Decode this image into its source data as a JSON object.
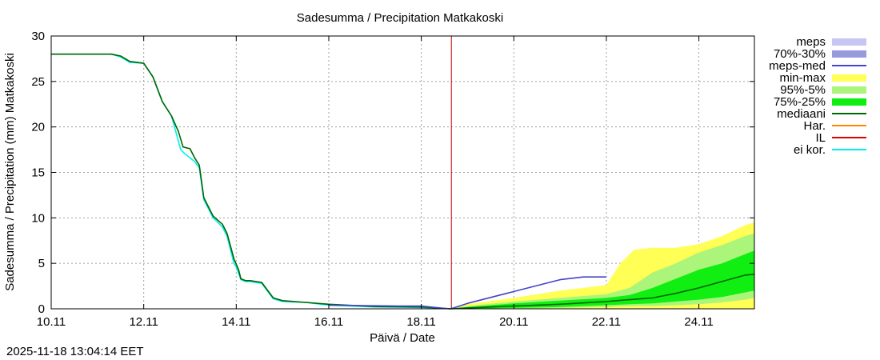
{
  "chart_data": {
    "type": "line",
    "title": "Sadesumma / Precipitation  Matkakoski",
    "xlabel": "Päivä / Date",
    "ylabel": "Sadesumma / Precipitation (mm)  Matkakoski",
    "ylim": [
      0,
      30
    ],
    "xlim_days": [
      0,
      15.2
    ],
    "y_ticks": [
      0,
      5,
      10,
      15,
      20,
      25,
      30
    ],
    "x_ticks": [
      {
        "day": 0,
        "label": "10.11"
      },
      {
        "day": 2,
        "label": "12.11"
      },
      {
        "day": 4,
        "label": "14.11"
      },
      {
        "day": 6,
        "label": "16.11"
      },
      {
        "day": 8,
        "label": "18.11"
      },
      {
        "day": 10,
        "label": "20.11"
      },
      {
        "day": 12,
        "label": "22.11"
      },
      {
        "day": 14,
        "label": "24.11"
      }
    ],
    "grid": true,
    "now_marker_day": 8.65,
    "legend": [
      {
        "label": "meps",
        "color": "#c6c6f5",
        "kind": "box"
      },
      {
        "label": "70%-30%",
        "color": "#9999dd",
        "kind": "box"
      },
      {
        "label": "meps-med",
        "color": "#4444cc",
        "kind": "line"
      },
      {
        "label": "min-max",
        "color": "#ffff55",
        "kind": "box"
      },
      {
        "label": "95%-5%",
        "color": "#aaf57a",
        "kind": "box"
      },
      {
        "label": "75%-25%",
        "color": "#11ee11",
        "kind": "box"
      },
      {
        "label": "mediaani",
        "color": "#006600",
        "kind": "line"
      },
      {
        "label": "Har.",
        "color": "#ff8800",
        "kind": "line"
      },
      {
        "label": "IL",
        "color": "#dd0000",
        "kind": "line"
      },
      {
        "label": "ei kor.",
        "color": "#00eeee",
        "kind": "line"
      }
    ],
    "series": [
      {
        "name": "ei kor.",
        "color": "#00eeee",
        "x": [
          0,
          1,
          1.3,
          1.5,
          1.7,
          2.0,
          2.2,
          2.4,
          2.6,
          2.8,
          2.9,
          3.1,
          3.2,
          3.3,
          3.5,
          3.7,
          3.8,
          3.95,
          4.0,
          4.1,
          4.2,
          4.3,
          4.55,
          4.8,
          5.0,
          5.5,
          6.0,
          7.0,
          8.0,
          8.65
        ],
        "y": [
          28,
          28,
          28,
          27.7,
          27.1,
          27.0,
          25.5,
          22.8,
          21.2,
          17.5,
          17.0,
          16.2,
          15.5,
          12.0,
          10.0,
          9.0,
          8.0,
          5.0,
          4.6,
          3.2,
          3.0,
          3.0,
          2.8,
          1.1,
          0.8,
          0.7,
          0.4,
          0.2,
          0.15,
          0
        ]
      },
      {
        "name": "mediaani (observed)",
        "color": "#006600",
        "x": [
          0,
          1,
          1.3,
          1.5,
          1.7,
          2.0,
          2.2,
          2.4,
          2.6,
          2.75,
          2.85,
          3.0,
          3.1,
          3.2,
          3.3,
          3.5,
          3.7,
          3.8,
          3.95,
          4.05,
          4.1,
          4.2,
          4.3,
          4.55,
          4.8,
          5.0,
          5.5,
          6.0,
          7.0,
          8.0,
          8.65
        ],
        "y": [
          28,
          28,
          28,
          27.8,
          27.2,
          27.0,
          25.5,
          22.8,
          21.2,
          19.5,
          17.8,
          17.6,
          16.6,
          15.8,
          12.2,
          10.2,
          9.3,
          8.3,
          5.5,
          4.3,
          3.3,
          3.1,
          3.1,
          2.9,
          1.2,
          0.9,
          0.7,
          0.5,
          0.25,
          0.2,
          0
        ]
      },
      {
        "name": "meps-med",
        "color": "#4444cc",
        "x": [
          6.0,
          7.5,
          8.0,
          8.6,
          8.7,
          9.0,
          10.0,
          11.0,
          11.5,
          12.0
        ],
        "y": [
          0.4,
          0.3,
          0.3,
          0,
          0.1,
          0.6,
          1.9,
          3.2,
          3.5,
          3.5
        ]
      },
      {
        "name": "mediaani (forecast)",
        "color": "#006600",
        "x": [
          8.65,
          9.0,
          10.0,
          11.0,
          12.0,
          12.5,
          13.0,
          13.5,
          14.0,
          14.5,
          15.0,
          15.2
        ],
        "y": [
          0,
          0.1,
          0.3,
          0.5,
          0.8,
          1.0,
          1.2,
          1.7,
          2.3,
          3.0,
          3.7,
          3.8
        ]
      }
    ],
    "bands": [
      {
        "name": "min-max",
        "color": "#ffff55",
        "x": [
          8.65,
          9.0,
          10.0,
          11.0,
          11.5,
          12.0,
          12.3,
          12.6,
          13.0,
          13.5,
          14.0,
          14.5,
          15.0,
          15.2
        ],
        "low": [
          0,
          0,
          0,
          0,
          0,
          0,
          0,
          0,
          0,
          0,
          0,
          0,
          0,
          0
        ],
        "high": [
          0,
          0.5,
          1.2,
          2.0,
          2.3,
          2.6,
          5.0,
          6.5,
          6.7,
          6.7,
          7.1,
          8.0,
          9.2,
          9.5
        ]
      },
      {
        "name": "95%-5%",
        "color": "#aaf57a",
        "x": [
          8.65,
          9.0,
          10.0,
          11.0,
          12.0,
          12.5,
          13.0,
          13.5,
          14.0,
          14.5,
          15.0,
          15.2
        ],
        "low": [
          0,
          0,
          0,
          0.1,
          0.2,
          0.3,
          0.3,
          0.4,
          0.5,
          0.7,
          1.0,
          1.2
        ],
        "high": [
          0,
          0.3,
          0.8,
          1.2,
          1.6,
          2.3,
          4.0,
          5.0,
          6.2,
          7.0,
          8.0,
          8.3
        ]
      },
      {
        "name": "75%-25%",
        "color": "#11ee11",
        "x": [
          8.65,
          9.0,
          10.0,
          11.0,
          12.0,
          12.5,
          13.0,
          13.5,
          14.0,
          14.5,
          15.0,
          15.2
        ],
        "low": [
          0,
          0,
          0.1,
          0.2,
          0.4,
          0.5,
          0.6,
          0.8,
          1.0,
          1.3,
          1.8,
          2.0
        ],
        "high": [
          0,
          0.2,
          0.6,
          0.9,
          1.2,
          1.5,
          2.3,
          3.3,
          4.3,
          5.0,
          6.0,
          6.4
        ]
      }
    ]
  },
  "timestamp": "2025-11-18 13:04:14 EET"
}
